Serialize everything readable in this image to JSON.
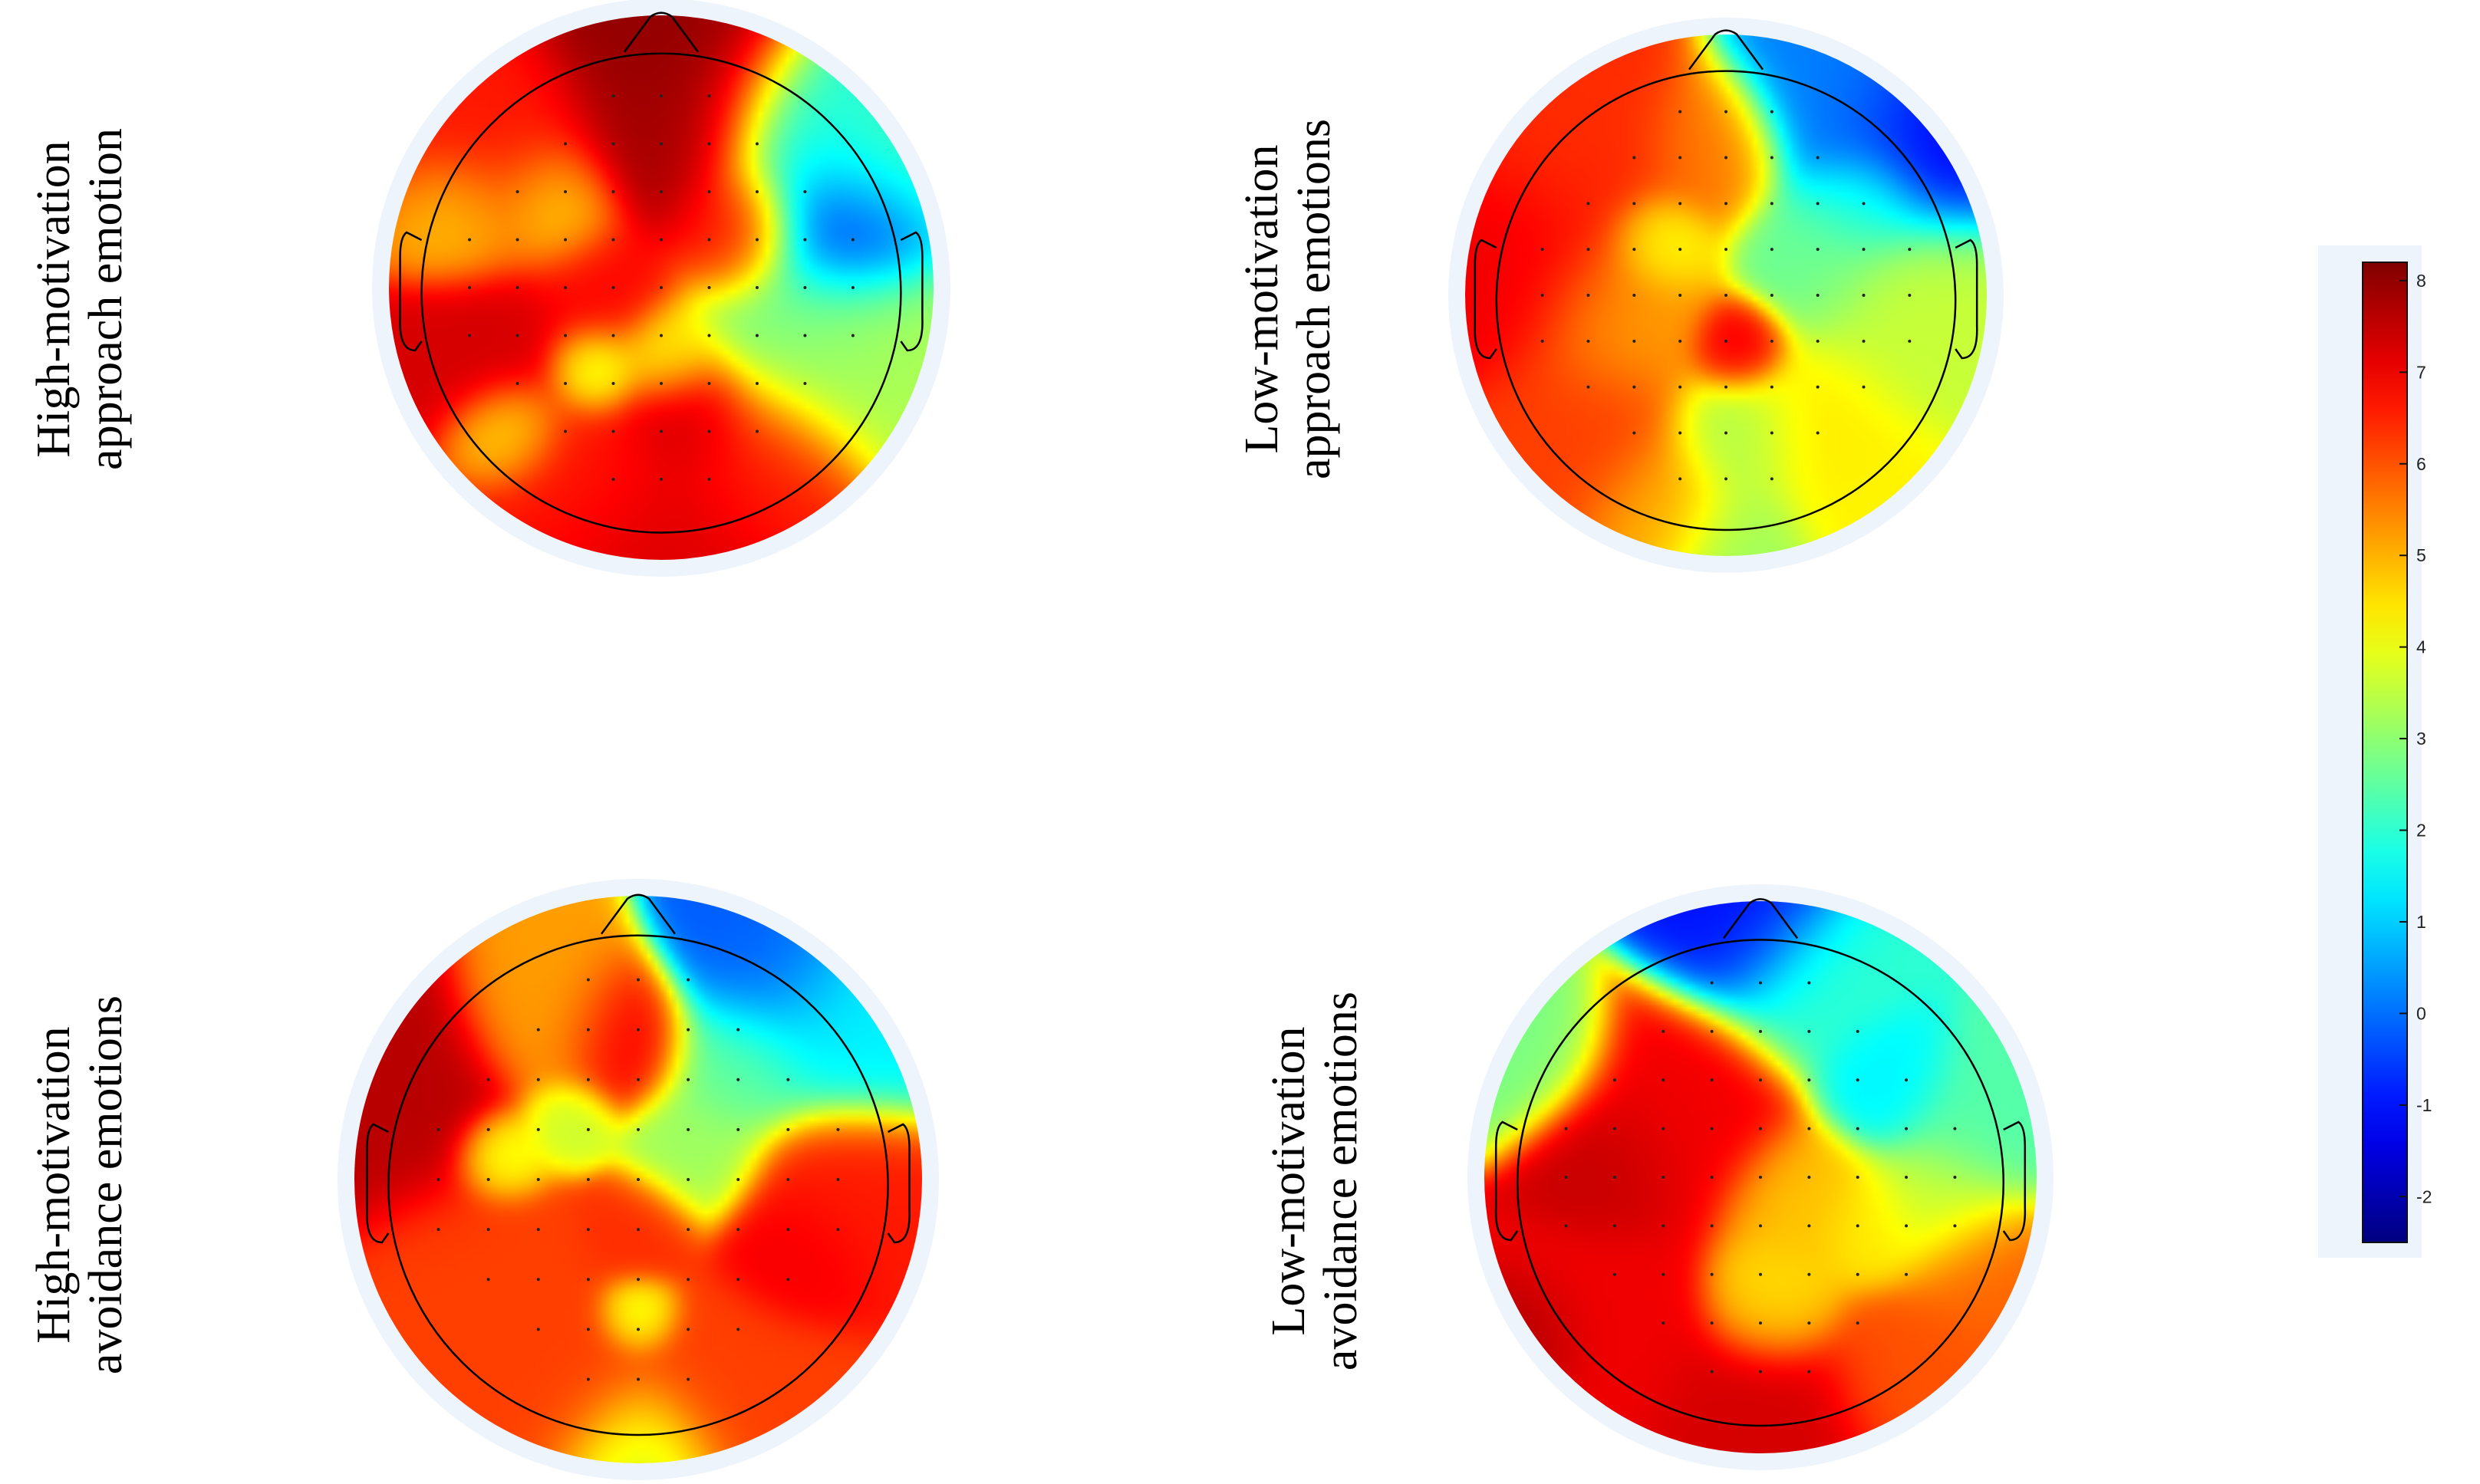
{
  "chart_data": {
    "type": "heatmap",
    "subtype": "eeg-topographic-map",
    "panels": [
      {
        "label_lines": [
          "High-motivation",
          "approach emotion"
        ],
        "blobs": [
          {
            "x": 0.08,
            "y": -0.82,
            "v": 8.0,
            "s": 0.22
          },
          {
            "x": 0.02,
            "y": -0.55,
            "v": 7.8,
            "s": 0.17
          },
          {
            "x": 0.28,
            "y": -0.22,
            "v": 7.0,
            "s": 0.13
          },
          {
            "x": 0.68,
            "y": -0.22,
            "v": -1.6,
            "s": 0.16
          },
          {
            "x": 0.55,
            "y": -0.55,
            "v": 1.6,
            "s": 0.2
          },
          {
            "x": 0.8,
            "y": -0.45,
            "v": 2.4,
            "s": 0.18
          },
          {
            "x": 0.55,
            "y": 0.15,
            "v": 2.8,
            "s": 0.22
          },
          {
            "x": 0.78,
            "y": 0.25,
            "v": 3.4,
            "s": 0.2
          },
          {
            "x": -0.55,
            "y": -0.45,
            "v": 6.6,
            "s": 0.2
          },
          {
            "x": -0.72,
            "y": -0.25,
            "v": 4.6,
            "s": 0.12
          },
          {
            "x": -0.4,
            "y": -0.3,
            "v": 4.2,
            "s": 0.12
          },
          {
            "x": -0.22,
            "y": 0.02,
            "v": 6.8,
            "s": 0.14
          },
          {
            "x": -0.62,
            "y": 0.22,
            "v": 7.3,
            "s": 0.16
          },
          {
            "x": -0.25,
            "y": 0.3,
            "v": 3.6,
            "s": 0.09
          },
          {
            "x": 0.02,
            "y": 0.25,
            "v": 4.2,
            "s": 0.1
          },
          {
            "x": 0.1,
            "y": 0.48,
            "v": 7.4,
            "s": 0.13
          },
          {
            "x": -0.55,
            "y": 0.52,
            "v": 4.3,
            "s": 0.1
          },
          {
            "x": -0.3,
            "y": 0.68,
            "v": 6.6,
            "s": 0.18
          },
          {
            "x": 0.38,
            "y": 0.65,
            "v": 6.6,
            "s": 0.18
          },
          {
            "x": 0.0,
            "y": 0.95,
            "v": 7.2,
            "s": 0.22
          }
        ]
      },
      {
        "label_lines": [
          "Low-motivation",
          "approach emotions"
        ],
        "blobs": [
          {
            "x": -0.8,
            "y": -0.12,
            "v": 7.0,
            "s": 0.22
          },
          {
            "x": -0.55,
            "y": -0.55,
            "v": 6.4,
            "s": 0.22
          },
          {
            "x": -0.05,
            "y": -0.55,
            "v": 5.6,
            "s": 0.14
          },
          {
            "x": 0.45,
            "y": -0.75,
            "v": 0.2,
            "s": 0.2
          },
          {
            "x": 0.78,
            "y": -0.6,
            "v": -1.2,
            "s": 0.2
          },
          {
            "x": 0.52,
            "y": -0.35,
            "v": 1.9,
            "s": 0.12
          },
          {
            "x": 0.35,
            "y": -0.15,
            "v": 2.6,
            "s": 0.15
          },
          {
            "x": 0.72,
            "y": 0.05,
            "v": 3.6,
            "s": 0.22
          },
          {
            "x": 0.05,
            "y": 0.2,
            "v": 7.1,
            "s": 0.09
          },
          {
            "x": -0.4,
            "y": 0.08,
            "v": 5.2,
            "s": 0.18
          },
          {
            "x": -0.25,
            "y": -0.2,
            "v": 4.0,
            "s": 0.1
          },
          {
            "x": -0.55,
            "y": 0.55,
            "v": 6.2,
            "s": 0.2
          },
          {
            "x": 0.05,
            "y": 0.55,
            "v": 3.3,
            "s": 0.14
          },
          {
            "x": 0.35,
            "y": 0.5,
            "v": 4.4,
            "s": 0.16
          },
          {
            "x": -0.25,
            "y": 0.82,
            "v": 5.0,
            "s": 0.15
          },
          {
            "x": 0.05,
            "y": 0.97,
            "v": 3.2,
            "s": 0.15
          },
          {
            "x": 0.55,
            "y": 0.78,
            "v": 4.3,
            "s": 0.16
          }
        ]
      },
      {
        "label_lines": [
          "High-motivation",
          "avoidance emotions"
        ],
        "blobs": [
          {
            "x": -0.85,
            "y": -0.28,
            "v": 7.6,
            "s": 0.2
          },
          {
            "x": -0.05,
            "y": -0.5,
            "v": 7.0,
            "s": 0.12
          },
          {
            "x": -0.3,
            "y": -0.58,
            "v": 5.2,
            "s": 0.15
          },
          {
            "x": 0.45,
            "y": -0.75,
            "v": -0.2,
            "s": 0.16
          },
          {
            "x": 0.7,
            "y": -0.55,
            "v": 1.4,
            "s": 0.18
          },
          {
            "x": 0.35,
            "y": -0.4,
            "v": 2.6,
            "s": 0.14
          },
          {
            "x": 0.2,
            "y": -0.1,
            "v": 3.2,
            "s": 0.12
          },
          {
            "x": -0.25,
            "y": -0.2,
            "v": 3.6,
            "s": 0.08
          },
          {
            "x": -0.48,
            "y": -0.08,
            "v": 3.8,
            "s": 0.08
          },
          {
            "x": 0.7,
            "y": 0.05,
            "v": 6.6,
            "s": 0.16
          },
          {
            "x": 0.55,
            "y": 0.25,
            "v": 7.0,
            "s": 0.12
          },
          {
            "x": 0.0,
            "y": 0.18,
            "v": 6.4,
            "s": 0.1
          },
          {
            "x": 0.0,
            "y": 0.48,
            "v": 3.8,
            "s": 0.07
          },
          {
            "x": -0.55,
            "y": 0.35,
            "v": 6.2,
            "s": 0.2
          },
          {
            "x": -0.25,
            "y": 0.72,
            "v": 6.2,
            "s": 0.18
          },
          {
            "x": 0.3,
            "y": 0.72,
            "v": 6.2,
            "s": 0.18
          },
          {
            "x": 0.0,
            "y": 0.97,
            "v": 3.6,
            "s": 0.14
          }
        ]
      },
      {
        "label_lines": [
          "Low-motivation",
          "avoidance emotions"
        ],
        "blobs": [
          {
            "x": -0.55,
            "y": -0.05,
            "v": 7.5,
            "s": 0.14
          },
          {
            "x": -0.3,
            "y": -0.22,
            "v": 7.0,
            "s": 0.2
          },
          {
            "x": -0.85,
            "y": -0.45,
            "v": 2.8,
            "s": 0.14
          },
          {
            "x": -0.05,
            "y": -0.92,
            "v": -1.0,
            "s": 0.16
          },
          {
            "x": 0.2,
            "y": -0.7,
            "v": 2.0,
            "s": 0.16
          },
          {
            "x": 0.45,
            "y": -0.35,
            "v": 1.4,
            "s": 0.12
          },
          {
            "x": 0.8,
            "y": -0.2,
            "v": 2.4,
            "s": 0.15
          },
          {
            "x": 0.65,
            "y": 0.1,
            "v": 3.6,
            "s": 0.14
          },
          {
            "x": 0.4,
            "y": 0.2,
            "v": 4.4,
            "s": 0.1
          },
          {
            "x": 0.8,
            "y": 0.35,
            "v": 5.8,
            "s": 0.14
          },
          {
            "x": 0.15,
            "y": 0.1,
            "v": 4.8,
            "s": 0.14
          },
          {
            "x": -0.6,
            "y": 0.55,
            "v": 7.0,
            "s": 0.2
          },
          {
            "x": -0.85,
            "y": 0.6,
            "v": 7.8,
            "s": 0.12
          },
          {
            "x": 0.0,
            "y": 0.9,
            "v": 7.3,
            "s": 0.2
          },
          {
            "x": 0.55,
            "y": 0.7,
            "v": 6.0,
            "s": 0.16
          },
          {
            "x": 0.05,
            "y": 0.45,
            "v": 4.5,
            "s": 0.12
          }
        ]
      }
    ],
    "colorbar": {
      "range": [
        -2.5,
        8.2
      ],
      "ticks": [
        "8",
        "7",
        "6",
        "5",
        "4",
        "3",
        "2",
        "1",
        "0",
        "-1",
        "-2"
      ],
      "colormap": "jet"
    }
  }
}
